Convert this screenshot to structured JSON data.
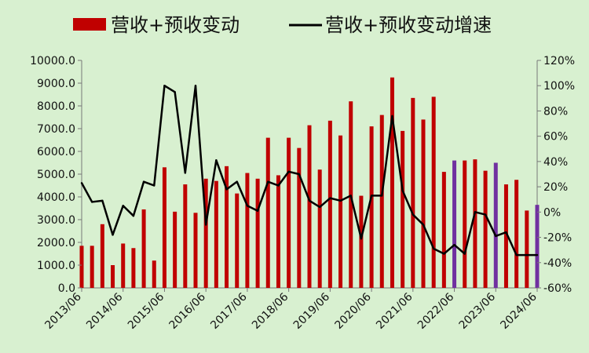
{
  "chart_data": {
    "type": "bar+line",
    "legend": [
      {
        "label": "营收+预收变动",
        "kind": "bar",
        "color": "#c00000"
      },
      {
        "label": "营收+预收变动增速",
        "kind": "line",
        "color": "#000000"
      }
    ],
    "legend_position": "top",
    "grid": false,
    "colors": {
      "background": "#d8f0d0",
      "bar": "#c00000",
      "bar_highlight": "#7030a0",
      "line": "#000000"
    },
    "x_tick_labels": [
      "2013/06",
      "2014/06",
      "2015/06",
      "2016/06",
      "2017/06",
      "2018/06",
      "2019/06",
      "2020/06",
      "2021/06",
      "2022/06",
      "2023/06",
      "2024/06"
    ],
    "y_left": {
      "ticks": [
        "0.0",
        "1000.0",
        "2000.0",
        "3000.0",
        "4000.0",
        "5000.0",
        "6000.0",
        "7000.0",
        "8000.0",
        "9000.0",
        "10000.0"
      ],
      "range": [
        0,
        10000
      ]
    },
    "y_right": {
      "ticks": [
        "-60%",
        "-40%",
        "-20%",
        "0%",
        "20%",
        "40%",
        "60%",
        "80%",
        "100%",
        "120%"
      ],
      "range": [
        -60,
        120
      ]
    },
    "bars": [
      1850,
      1850,
      2800,
      1000,
      1950,
      1750,
      3450,
      1200,
      5300,
      3350,
      4550,
      3300,
      4800,
      4700,
      5350,
      4150,
      5050,
      4800,
      6600,
      4950,
      6600,
      6150,
      7150,
      5200,
      7350,
      6700,
      8200,
      4050,
      7100,
      7600,
      9250,
      6900,
      8350,
      7400,
      8400,
      5100,
      5600,
      5600,
      5650,
      5150,
      5500,
      4550,
      4750,
      3400,
      3650
    ],
    "bar_highlight_indices": [
      36,
      40,
      44
    ],
    "growth": [
      23,
      8,
      9,
      -18,
      5,
      -3,
      24,
      21,
      100,
      95,
      31,
      100,
      -10,
      41,
      18,
      24,
      5,
      1,
      24,
      21,
      32,
      30,
      9,
      4,
      11,
      9,
      13,
      -21,
      13,
      13,
      76,
      17,
      -2,
      -10,
      -29,
      -33,
      -26,
      -33,
      0,
      -2,
      -19,
      -16,
      -34,
      -34,
      -34
    ]
  }
}
